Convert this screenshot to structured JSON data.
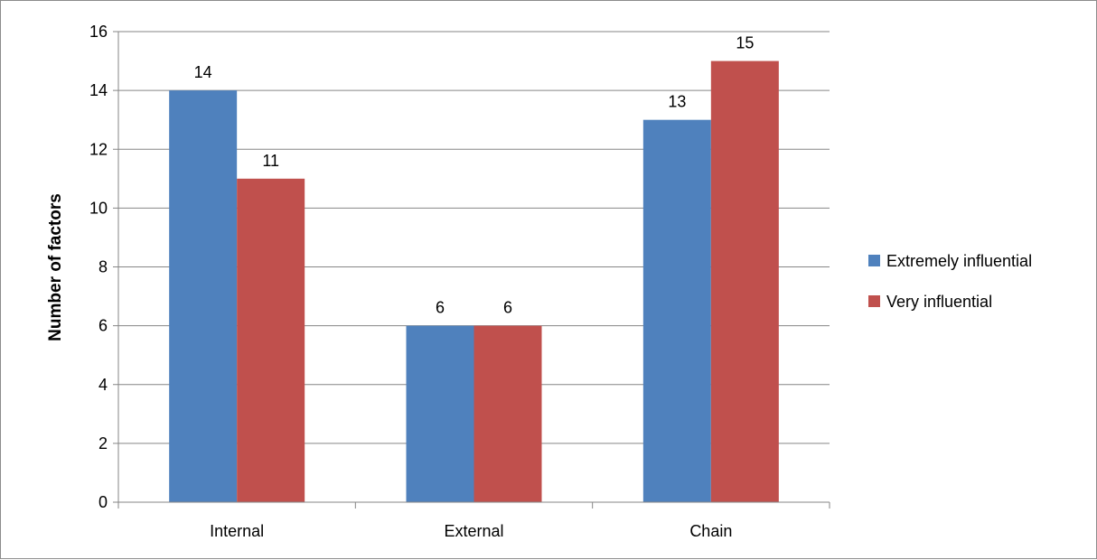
{
  "chart_data": {
    "type": "bar",
    "categories": [
      "Internal",
      "External",
      "Chain"
    ],
    "series": [
      {
        "name": "Extremely influential",
        "values": [
          14,
          6,
          13
        ],
        "color": "#4f81bd"
      },
      {
        "name": "Very influential",
        "values": [
          11,
          6,
          15
        ],
        "color": "#c0504d"
      }
    ],
    "ylabel": "Number of factors",
    "ylim": [
      0,
      16
    ],
    "yticks": [
      "0",
      "2",
      "4",
      "6",
      "8",
      "10",
      "12",
      "14",
      "16"
    ],
    "grid": true,
    "legend_position": "right",
    "data_labels": true
  }
}
